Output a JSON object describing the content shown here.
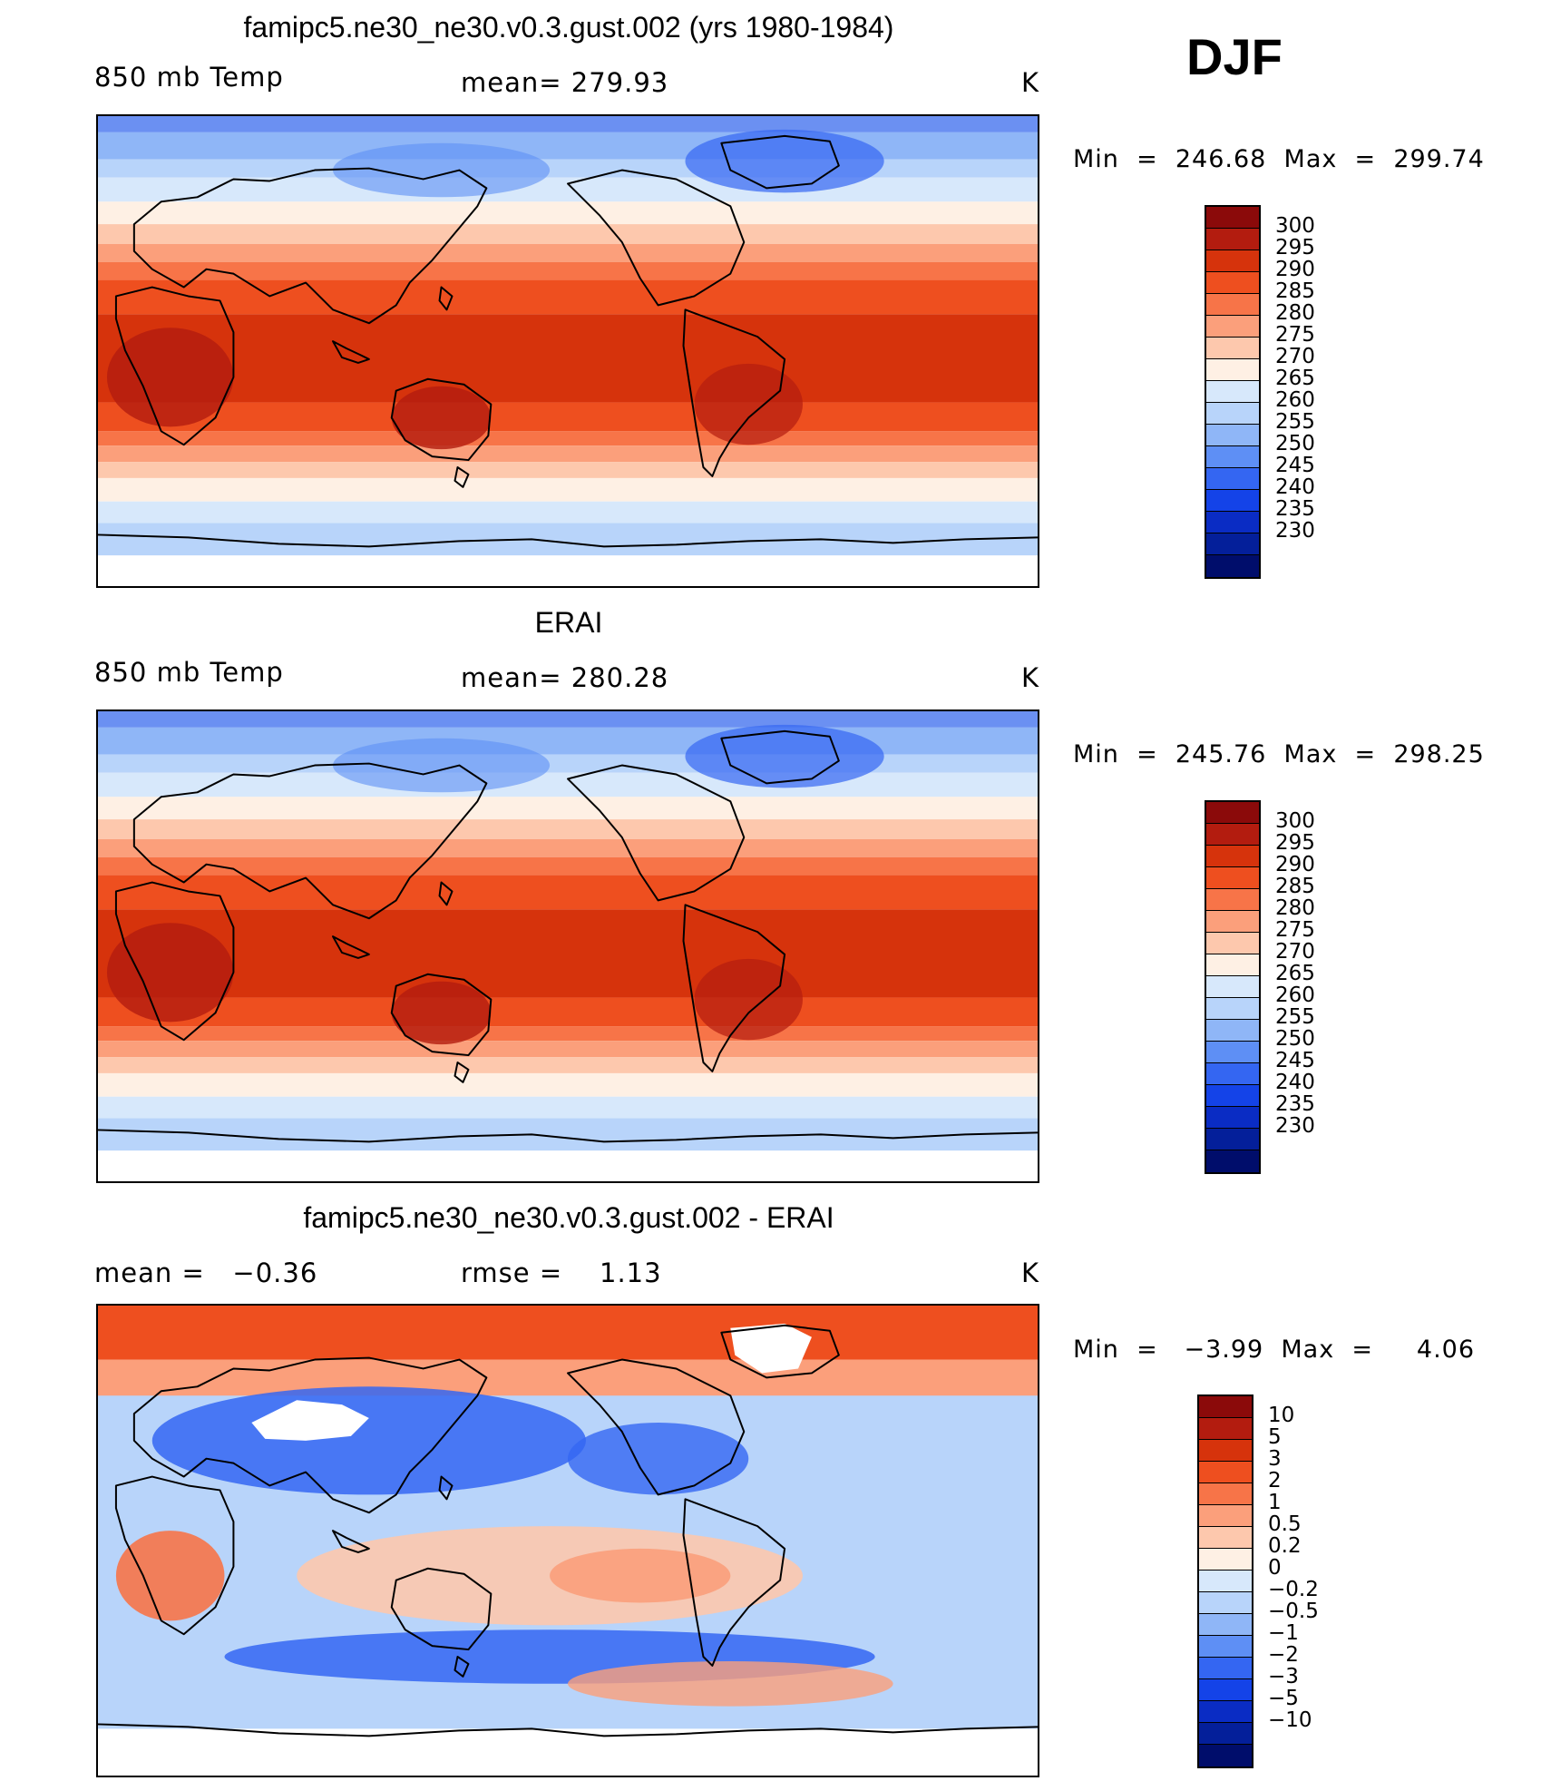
{
  "season": "DJF",
  "units_label": "K",
  "panels": [
    {
      "title": "famipc5.ne30_ne30.v0.3.gust.002 (yrs 1980-1984)",
      "left_label": "850 mb Temp",
      "stat_label": "mean=",
      "stat_value": "279.93",
      "units": "K",
      "min_label": "Min",
      "min_value": "246.68",
      "max_label": "Max",
      "max_value": "299.74",
      "map_type": "field",
      "colorbar": {
        "colors": [
          "#8b0a0a",
          "#b31c0f",
          "#d6330c",
          "#ee4f1f",
          "#f77448",
          "#fb9f7b",
          "#fdc8ad",
          "#fef0e4",
          "#d7e8fb",
          "#b8d4fa",
          "#8fb6f7",
          "#5e8ff5",
          "#3466f2",
          "#1443e8",
          "#0a2cc4",
          "#041f9a",
          "#000d6b"
        ],
        "labels": [
          "300",
          "295",
          "290",
          "285",
          "280",
          "275",
          "270",
          "265",
          "260",
          "255",
          "250",
          "245",
          "240",
          "235",
          "230"
        ]
      }
    },
    {
      "title": "ERAI",
      "left_label": "850 mb Temp",
      "stat_label": "mean=",
      "stat_value": "280.28",
      "units": "K",
      "min_label": "Min",
      "min_value": "245.76",
      "max_label": "Max",
      "max_value": "298.25",
      "map_type": "field",
      "colorbar": {
        "colors": [
          "#8b0a0a",
          "#b31c0f",
          "#d6330c",
          "#ee4f1f",
          "#f77448",
          "#fb9f7b",
          "#fdc8ad",
          "#fef0e4",
          "#d7e8fb",
          "#b8d4fa",
          "#8fb6f7",
          "#5e8ff5",
          "#3466f2",
          "#1443e8",
          "#0a2cc4",
          "#041f9a",
          "#000d6b"
        ],
        "labels": [
          "300",
          "295",
          "290",
          "285",
          "280",
          "275",
          "270",
          "265",
          "260",
          "255",
          "250",
          "245",
          "240",
          "235",
          "230"
        ]
      }
    },
    {
      "title": "famipc5.ne30_ne30.v0.3.gust.002 - ERAI",
      "left_label": "mean =",
      "left_value": "−0.36",
      "stat_label": "rmse =",
      "stat_value": "1.13",
      "units": "K",
      "min_label": "Min",
      "min_value": "−3.99",
      "max_label": "Max",
      "max_value": "4.06",
      "map_type": "diff",
      "colorbar": {
        "colors": [
          "#8b0a0a",
          "#b31c0f",
          "#d6330c",
          "#ee4f1f",
          "#f77448",
          "#fb9f7b",
          "#fdc8ad",
          "#fef0e4",
          "#d7e8fb",
          "#b8d4fa",
          "#8fb6f7",
          "#5e8ff5",
          "#3466f2",
          "#1443e8",
          "#0a2cc4",
          "#041f9a",
          "#000d6b"
        ],
        "labels": [
          "10",
          "5",
          "3",
          "2",
          "1",
          "0.5",
          "0.2",
          "0",
          "−0.2",
          "−0.5",
          "−1",
          "−2",
          "−3",
          "−5",
          "−10"
        ]
      }
    }
  ]
}
